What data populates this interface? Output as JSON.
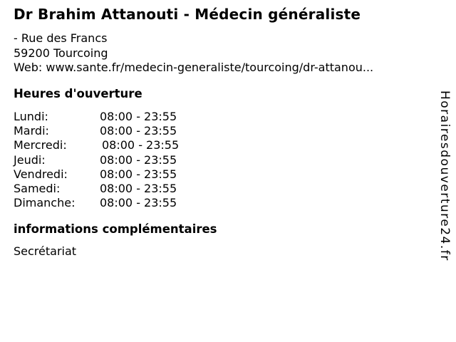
{
  "header": {
    "title": "Dr Brahim Attanouti - Médecin généraliste",
    "address_line1": "- Rue des Francs",
    "address_line2": "59200 Tourcoing",
    "web_line": "Web: www.sante.fr/medecin-generaliste/tourcoing/dr-attanou..."
  },
  "hours": {
    "heading": "Heures d'ouverture",
    "rows": [
      {
        "day": "Lundi:",
        "time": "08:00 - 23:55"
      },
      {
        "day": "Mardi:",
        "time": "08:00 - 23:55"
      },
      {
        "day": "Mercredi:",
        "time": "08:00 - 23:55"
      },
      {
        "day": "Jeudi:",
        "time": "08:00 - 23:55"
      },
      {
        "day": "Vendredi:",
        "time": "08:00 - 23:55"
      },
      {
        "day": "Samedi:",
        "time": "08:00 - 23:55"
      },
      {
        "day": "Dimanche:",
        "time": "08:00 - 23:55"
      }
    ]
  },
  "info": {
    "heading": "informations complémentaires",
    "text": "Secrétariat"
  },
  "watermark": "Horairesdouverture24.fr",
  "colors": {
    "background": "#ffffff",
    "text": "#000000"
  }
}
